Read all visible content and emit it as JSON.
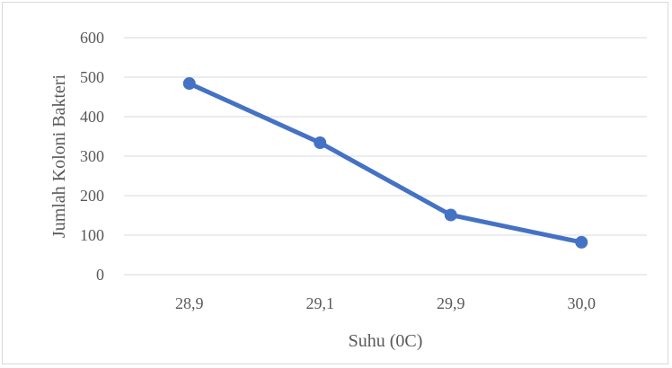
{
  "chart_data": {
    "type": "line",
    "title": "",
    "xlabel": "Suhu (0C)",
    "ylabel": "Jumlah Koloni Bakteri",
    "categories": [
      "28,9",
      "29,1",
      "29,9",
      "30,0"
    ],
    "series": [
      {
        "values": [
          484,
          334,
          151,
          82
        ]
      }
    ],
    "ylim": [
      0,
      600
    ],
    "yticks": [
      "0",
      "100",
      "200",
      "300",
      "400",
      "500",
      "600"
    ],
    "grid": true,
    "legend": "none",
    "colors": {
      "line": "#4472C4",
      "grid": "#d9d9d9",
      "text": "#595959"
    }
  }
}
